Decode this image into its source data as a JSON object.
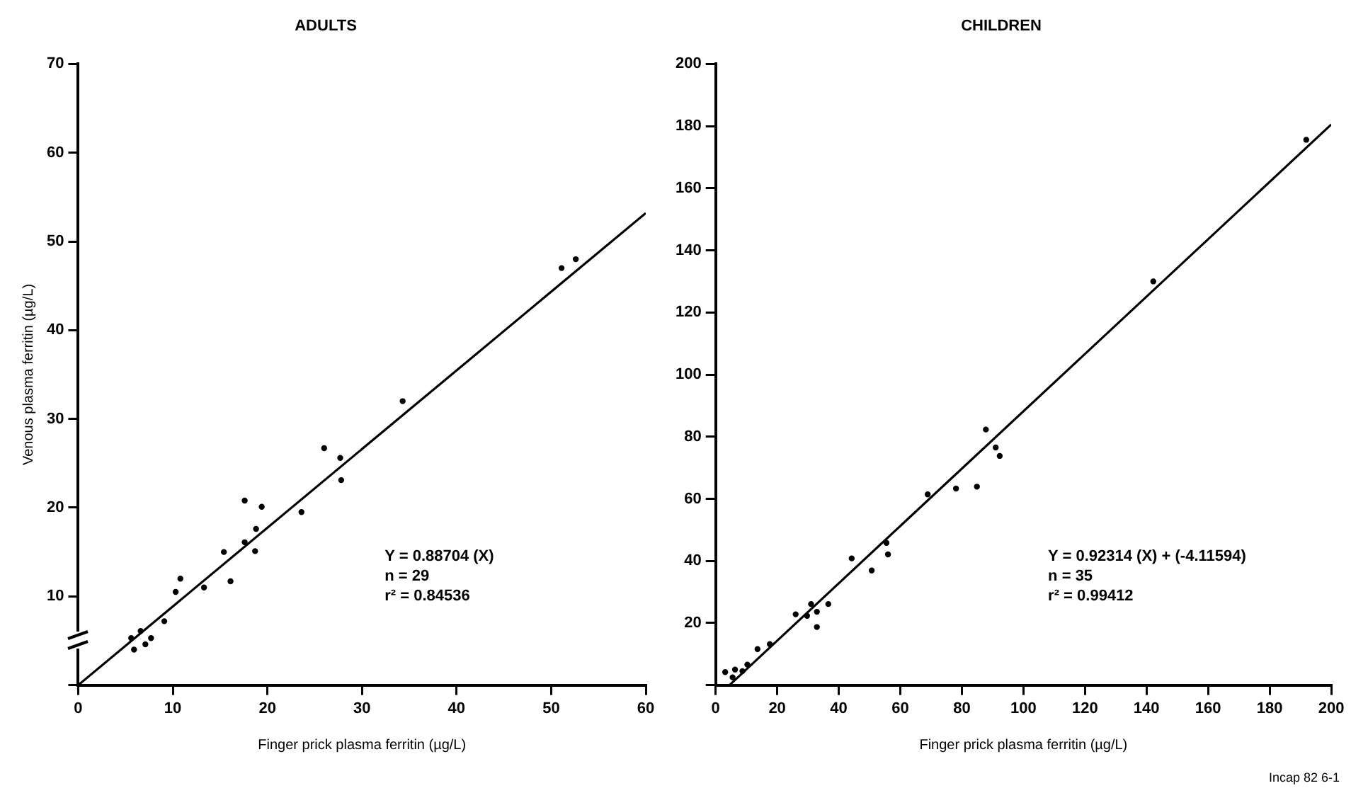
{
  "chart_data": [
    {
      "type": "scatter",
      "title": "ADULTS",
      "xlabel": "Finger prick plasma ferritin (µg/L)",
      "ylabel": "Venous plasma ferritin (µg/L)",
      "xlim": [
        0,
        60
      ],
      "ylim": [
        0,
        70
      ],
      "xticks": [
        0,
        10,
        20,
        30,
        40,
        50,
        60
      ],
      "yticks": [
        {
          "value": 0,
          "label": null
        },
        10,
        20,
        30,
        40,
        50,
        60,
        70
      ],
      "grid": false,
      "legend": false,
      "series": [
        {
          "type": "scatter",
          "color": "#000000",
          "marker": "circle",
          "x": [
            5.9,
            5.6,
            7.1,
            7.7,
            6.6,
            9.1,
            10.3,
            10.8,
            13.3,
            15.4,
            16.1,
            17.6,
            19.4,
            18.8,
            18.7,
            17.6,
            23.6,
            26.0,
            27.7,
            27.8,
            34.3,
            51.1,
            52.6
          ],
          "values": [
            4.0,
            5.3,
            4.6,
            5.3,
            6.1,
            7.2,
            10.5,
            12.0,
            11.0,
            15.0,
            11.7,
            20.8,
            20.1,
            17.6,
            15.1,
            16.1,
            19.5,
            26.7,
            25.6,
            23.1,
            32.0,
            47.0,
            48.0
          ]
        },
        {
          "type": "line",
          "color": "#000000",
          "marker": "none",
          "line_style": "solid",
          "x": [
            0,
            60
          ],
          "values": [
            0,
            53.2
          ]
        }
      ],
      "annotations": [
        "Y = 0.88704 (X)",
        "n = 29",
        "r² = 0.84536"
      ]
    },
    {
      "type": "scatter",
      "title": "CHILDREN",
      "xlabel": "Finger prick plasma ferritin (µg/L)",
      "xlim": [
        0,
        200
      ],
      "ylim": [
        0,
        200
      ],
      "xticks": [
        0,
        20,
        40,
        60,
        80,
        100,
        120,
        140,
        160,
        180,
        200
      ],
      "yticks": [
        {
          "value": 0,
          "label": null
        },
        20,
        40,
        60,
        80,
        100,
        120,
        140,
        160,
        180,
        200
      ],
      "grid": false,
      "legend": false,
      "series": [
        {
          "type": "scatter",
          "color": "#000000",
          "marker": "circle",
          "x": [
            87.8,
            91.0,
            92.3,
            84.9,
            78.1,
            68.9,
            55.5,
            56.0,
            50.7,
            44.2,
            36.6,
            32.9,
            32.9,
            31.0,
            29.7,
            26.0,
            17.6,
            13.6,
            10.3,
            6.3,
            3.1,
            5.5,
            8.7,
            142.2,
            191.9
          ],
          "values": [
            82.3,
            76.5,
            73.8,
            63.9,
            63.3,
            61.4,
            45.8,
            42.1,
            36.9,
            40.8,
            26.1,
            23.6,
            18.7,
            26.1,
            22.3,
            22.8,
            13.2,
            11.6,
            6.6,
            5.0,
            4.2,
            2.5,
            4.5,
            130.0,
            175.6
          ]
        },
        {
          "type": "line",
          "color": "#000000",
          "marker": "none",
          "line_style": "solid",
          "x": [
            4.5,
            200
          ],
          "values": [
            0,
            180.5
          ]
        }
      ],
      "annotations": [
        "Y = 0.92314 (X) + (-4.11594)",
        "n = 35",
        "r² = 0.99412",
        "Incap 82 6-1"
      ]
    }
  ]
}
